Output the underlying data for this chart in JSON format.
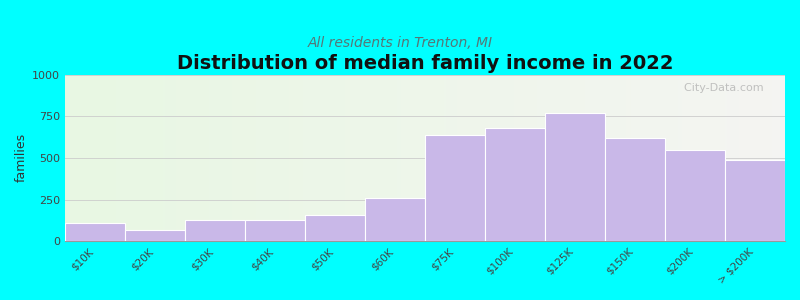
{
  "title": "Distribution of median family income in 2022",
  "subtitle": "All residents in Trenton, MI",
  "ylabel": "families",
  "categories": [
    "$10K",
    "$20K",
    "$30K",
    "$40K",
    "$50K",
    "$60K",
    "$75K",
    "$100K",
    "$125K",
    "$150K",
    "$200K",
    "> $200K"
  ],
  "values": [
    110,
    70,
    130,
    130,
    155,
    260,
    640,
    680,
    770,
    620,
    550,
    490
  ],
  "bar_color": "#c9b8e8",
  "bar_edge_color": "#ffffff",
  "ylim": [
    0,
    1000
  ],
  "yticks": [
    0,
    250,
    500,
    750,
    1000
  ],
  "outer_bg": "#00ffff",
  "title_fontsize": 14,
  "subtitle_fontsize": 10,
  "subtitle_color": "#557777",
  "watermark": "  City-Data.com"
}
